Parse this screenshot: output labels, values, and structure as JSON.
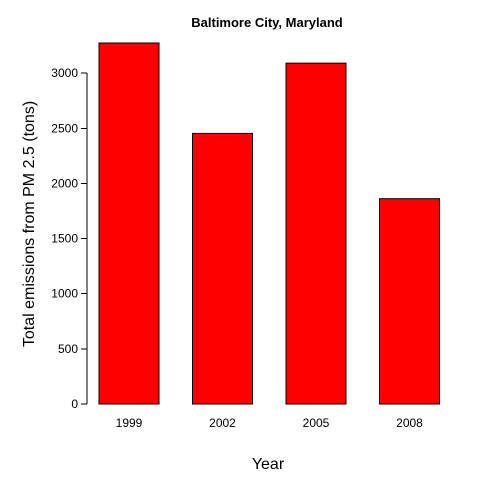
{
  "chart_data": {
    "type": "bar",
    "title": "Baltimore City, Maryland",
    "xlabel": "Year",
    "ylabel": "Total emissions from PM 2.5 (tons)",
    "categories": [
      "1999",
      "2002",
      "2005",
      "2008"
    ],
    "values": [
      3274,
      2454,
      3091,
      1862
    ],
    "ylim": [
      0,
      3274
    ],
    "yticks": [
      0,
      500,
      1000,
      1500,
      2000,
      2500,
      3000
    ],
    "grid": false,
    "colors": {
      "bar": "#ff0000",
      "border": "#000000"
    }
  }
}
